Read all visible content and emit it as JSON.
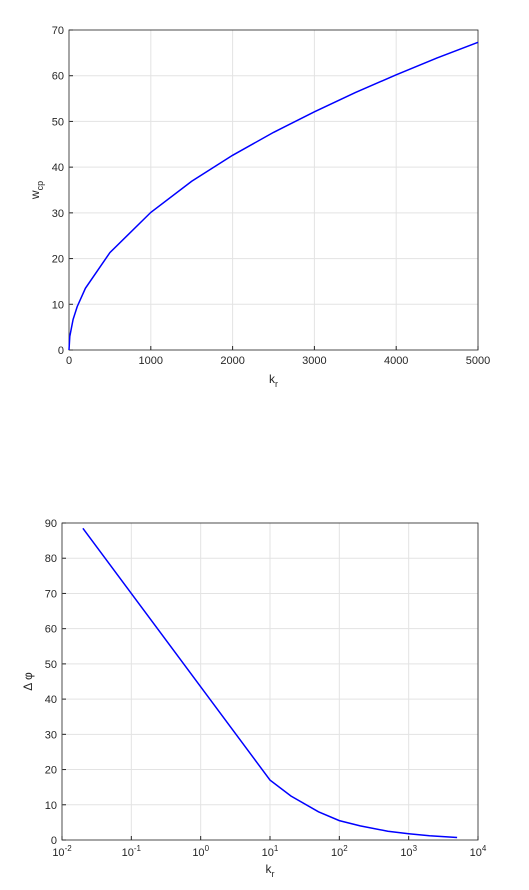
{
  "chart_data": [
    {
      "type": "line",
      "color": "#0000ff",
      "xlabel": "k",
      "xlabel_sub": "r",
      "ylabel": "w",
      "ylabel_sub": "cp",
      "x": [
        0,
        10,
        50,
        100,
        200,
        500,
        1000,
        1500,
        2000,
        2500,
        3000,
        3500,
        4000,
        4500,
        5000
      ],
      "values": [
        0,
        3.0,
        6.7,
        9.5,
        13.5,
        21.3,
        30.1,
        36.9,
        42.6,
        47.6,
        52.1,
        56.3,
        60.2,
        63.9,
        67.3
      ],
      "xlim": [
        0,
        5000
      ],
      "xticks": [
        0,
        1000,
        2000,
        3000,
        4000,
        5000
      ],
      "ylim": [
        0,
        70
      ],
      "yticks": [
        0,
        10,
        20,
        30,
        40,
        50,
        60,
        70
      ],
      "grid": true,
      "xlog": false
    },
    {
      "type": "line",
      "color": "#0000ff",
      "xlabel": "k",
      "xlabel_sub": "r",
      "ylabel": "Δ φ",
      "x": [
        0.02,
        0.1,
        1,
        10,
        20,
        50,
        100,
        200,
        500,
        1000,
        2000,
        5000
      ],
      "values": [
        88.5,
        70,
        43.5,
        17,
        12.5,
        8,
        5.5,
        4,
        2.5,
        1.8,
        1.2,
        0.7
      ],
      "xlim": [
        0.01,
        10000
      ],
      "xticks": [
        {
          "value": 0.01,
          "label": "10",
          "exponent": "-2"
        },
        {
          "value": 0.1,
          "label": "10",
          "exponent": "-1"
        },
        {
          "value": 1,
          "label": "10",
          "exponent": "0"
        },
        {
          "value": 10,
          "label": "10",
          "exponent": "1"
        },
        {
          "value": 100,
          "label": "10",
          "exponent": "2"
        },
        {
          "value": 1000,
          "label": "10",
          "exponent": "3"
        },
        {
          "value": 10000,
          "label": "10",
          "exponent": "4"
        }
      ],
      "ylim": [
        0,
        90
      ],
      "yticks": [
        0,
        10,
        20,
        30,
        40,
        50,
        60,
        70,
        80,
        90
      ],
      "grid": true,
      "xlog": true
    }
  ]
}
